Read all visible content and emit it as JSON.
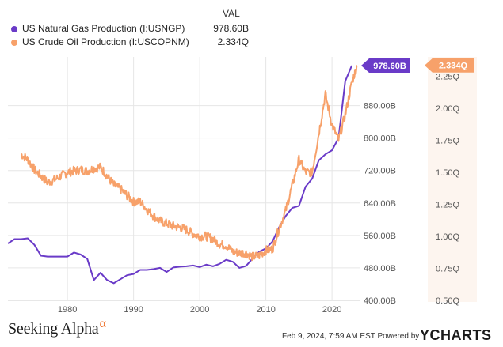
{
  "chart_data": {
    "type": "line",
    "legend_header": "VAL",
    "x_ticks": [
      "1980",
      "1990",
      "2000",
      "2010",
      "2020"
    ],
    "x_range": [
      1971,
      2024.3
    ],
    "series": [
      {
        "name": "US Natural Gas Production (I:USNGP)",
        "legend_value": "978.60B",
        "end_label": "978.60B",
        "color": "#6a3bc8",
        "axis": "left",
        "points": [
          [
            1971,
            540
          ],
          [
            1972,
            551
          ],
          [
            1973,
            551
          ],
          [
            1974,
            553
          ],
          [
            1975,
            537
          ],
          [
            1976,
            510
          ],
          [
            1977,
            508
          ],
          [
            1978,
            508
          ],
          [
            1979,
            508
          ],
          [
            1980,
            508
          ],
          [
            1981,
            518
          ],
          [
            1982,
            513
          ],
          [
            1983,
            502
          ],
          [
            1984,
            450
          ],
          [
            1985,
            468
          ],
          [
            1986,
            450
          ],
          [
            1987,
            442
          ],
          [
            1988,
            452
          ],
          [
            1989,
            462
          ],
          [
            1990,
            465
          ],
          [
            1991,
            475
          ],
          [
            1992,
            475
          ],
          [
            1993,
            477
          ],
          [
            1994,
            480
          ],
          [
            1995,
            470
          ],
          [
            1996,
            481
          ],
          [
            1997,
            483
          ],
          [
            1998,
            484
          ],
          [
            1999,
            486
          ],
          [
            2000,
            482
          ],
          [
            2001,
            488
          ],
          [
            2002,
            484
          ],
          [
            2003,
            490
          ],
          [
            2004,
            500
          ],
          [
            2005,
            495
          ],
          [
            2006,
            480
          ],
          [
            2007,
            485
          ],
          [
            2008,
            503
          ],
          [
            2009,
            520
          ],
          [
            2010,
            528
          ],
          [
            2011,
            545
          ],
          [
            2012,
            580
          ],
          [
            2013,
            608
          ],
          [
            2014,
            628
          ],
          [
            2015,
            633
          ],
          [
            2016,
            680
          ],
          [
            2017,
            700
          ],
          [
            2018,
            745
          ],
          [
            2019,
            760
          ],
          [
            2020,
            770
          ],
          [
            2021,
            800
          ],
          [
            2022,
            940
          ],
          [
            2023,
            978.6
          ]
        ]
      },
      {
        "name": "US Crude Oil Production (I:USCOPNM)",
        "legend_value": "2.334Q",
        "end_label": "2.334Q",
        "color": "#f7a16a",
        "axis": "right",
        "points": [
          [
            1973,
            1.64
          ],
          [
            1974,
            1.6
          ],
          [
            1975,
            1.52
          ],
          [
            1976,
            1.47
          ],
          [
            1977,
            1.42
          ],
          [
            1978,
            1.44
          ],
          [
            1979,
            1.47
          ],
          [
            1980,
            1.5
          ],
          [
            1981,
            1.51
          ],
          [
            1982,
            1.52
          ],
          [
            1983,
            1.51
          ],
          [
            1984,
            1.53
          ],
          [
            1985,
            1.54
          ],
          [
            1986,
            1.47
          ],
          [
            1987,
            1.4
          ],
          [
            1988,
            1.37
          ],
          [
            1989,
            1.32
          ],
          [
            1990,
            1.27
          ],
          [
            1991,
            1.27
          ],
          [
            1992,
            1.21
          ],
          [
            1993,
            1.16
          ],
          [
            1994,
            1.12
          ],
          [
            1995,
            1.1
          ],
          [
            1996,
            1.08
          ],
          [
            1997,
            1.07
          ],
          [
            1998,
            1.05
          ],
          [
            1999,
            1.02
          ],
          [
            2000,
            1.0
          ],
          [
            2001,
            1.0
          ],
          [
            2002,
            0.98
          ],
          [
            2003,
            0.94
          ],
          [
            2004,
            0.93
          ],
          [
            2005,
            0.88
          ],
          [
            2006,
            0.87
          ],
          [
            2007,
            0.87
          ],
          [
            2008,
            0.84
          ],
          [
            2009,
            0.85
          ],
          [
            2010,
            0.89
          ],
          [
            2011,
            0.9
          ],
          [
            2012,
            1.06
          ],
          [
            2013,
            1.2
          ],
          [
            2014,
            1.4
          ],
          [
            2015,
            1.6
          ],
          [
            2016,
            1.5
          ],
          [
            2017,
            1.5
          ],
          [
            2018,
            1.8
          ],
          [
            2019,
            2.11
          ],
          [
            2020,
            1.87
          ],
          [
            2021,
            1.75
          ],
          [
            2022,
            1.95
          ],
          [
            2023,
            2.2
          ],
          [
            2023.8,
            2.334
          ]
        ]
      }
    ],
    "left_axis": {
      "min": 400,
      "max": 1000,
      "ticks": [
        "400.00B",
        "480.00B",
        "560.00B",
        "640.00B",
        "720.00B",
        "800.00B",
        "880.00B"
      ],
      "tick_values": [
        400,
        480,
        560,
        640,
        720,
        800,
        880
      ]
    },
    "right_axis": {
      "min": 0.5,
      "max": 2.4,
      "ticks": [
        "0.50Q",
        "0.75Q",
        "1.00Q",
        "1.25Q",
        "1.50Q",
        "1.75Q",
        "2.00Q",
        "2.25Q"
      ],
      "tick_values": [
        0.5,
        0.75,
        1.0,
        1.25,
        1.5,
        1.75,
        2.0,
        2.25
      ]
    },
    "grid": true
  },
  "footer": {
    "brand": "Seeking Alpha",
    "brand_mark": "α",
    "stamp": "Feb 9, 2024, 7:59 AM EST Powered by",
    "logo_y": "Y",
    "logo_rest": "CHARTS"
  },
  "colors": {
    "gas": "#6a3bc8",
    "oil": "#f7a16a",
    "grid": "#e6e6e6",
    "axis_text": "#555555"
  }
}
